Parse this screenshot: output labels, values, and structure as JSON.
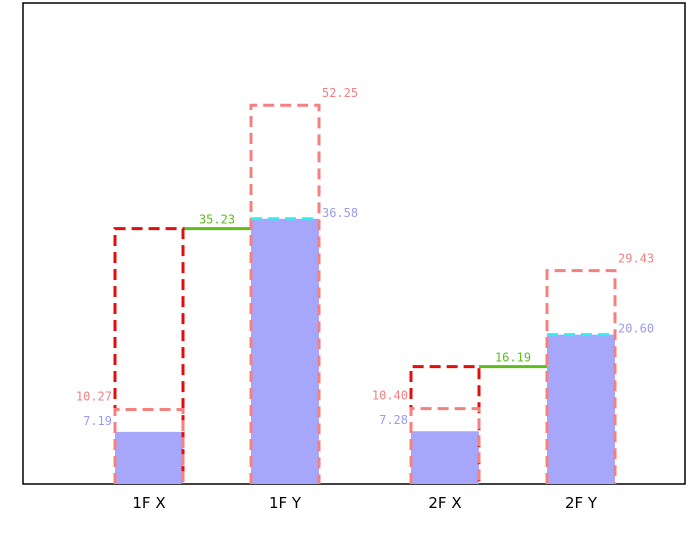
{
  "colors": {
    "filled": "#a6a6fb",
    "capacity_outline": "#f48080",
    "red_outline": "#e30d0d",
    "cyan_dash": "#33ecec",
    "green_link": "#5ebd1c",
    "blue_label": "#9a9af2",
    "frame": "#000000"
  },
  "chart_data": {
    "type": "bar",
    "categories": [
      "1F X",
      "1F Y",
      "2F X",
      "2F Y"
    ],
    "ylim": [
      0,
      60
    ],
    "series": [
      {
        "values": [
          7.19,
          36.58,
          7.28,
          20.6
        ],
        "labels": [
          "7.19",
          "36.58",
          "7.28",
          "20.60"
        ]
      },
      {
        "values": [
          10.27,
          52.25,
          10.4,
          29.43
        ],
        "labels": [
          "10.27",
          "52.25",
          "10.40",
          "29.43"
        ]
      }
    ],
    "links": [
      {
        "from": 0,
        "to": 1,
        "value": 35.23,
        "label": "35.23"
      },
      {
        "from": 2,
        "to": 3,
        "value": 16.19,
        "label": "16.19"
      }
    ]
  }
}
